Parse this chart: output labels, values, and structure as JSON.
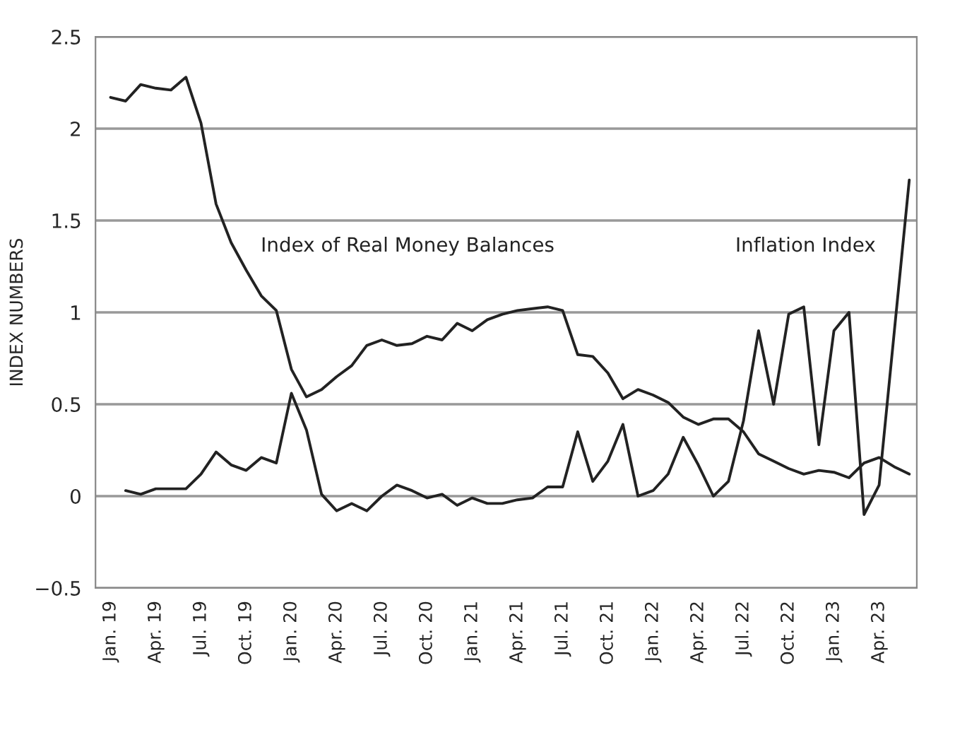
{
  "chart_data": {
    "type": "line",
    "ylabel": "INDEX NUMBERS",
    "categories": [
      "Jan. 19",
      null,
      null,
      "Apr. 19",
      null,
      null,
      "Jul. 19",
      null,
      null,
      "Oct. 19",
      null,
      null,
      "Jan. 20",
      null,
      null,
      "Apr. 20",
      null,
      null,
      "Jul. 20",
      null,
      null,
      "Oct. 20",
      null,
      null,
      "Jan. 21",
      null,
      null,
      "Apr. 21",
      null,
      null,
      "Jul. 21",
      null,
      null,
      "Oct. 21",
      null,
      null,
      "Jan. 22",
      null,
      null,
      "Apr. 22",
      null,
      null,
      "Jul. 22",
      null,
      null,
      "Oct. 22",
      null,
      null,
      "Jan. 23",
      null,
      null,
      "Apr. 23",
      null,
      null
    ],
    "series": [
      {
        "name": "Index of Real Money Balances",
        "color": "#222222",
        "values": [
          2.17,
          2.15,
          2.24,
          2.22,
          2.21,
          2.28,
          2.03,
          1.59,
          1.38,
          1.23,
          1.09,
          1.01,
          0.69,
          0.54,
          0.58,
          0.65,
          0.71,
          0.82,
          0.85,
          0.82,
          0.83,
          0.87,
          0.85,
          0.94,
          0.9,
          0.96,
          0.99,
          1.01,
          1.02,
          1.03,
          1.01,
          0.77,
          0.76,
          0.67,
          0.53,
          0.58,
          0.55,
          0.51,
          0.43,
          0.39,
          0.42,
          0.42,
          0.35,
          0.23,
          0.19,
          0.15,
          0.12,
          0.14,
          0.13,
          0.1,
          0.18,
          0.21,
          0.16,
          0.12
        ]
      },
      {
        "name": "Inflation Index",
        "color": "#222222",
        "values": [
          null,
          0.03,
          0.01,
          0.04,
          0.04,
          0.04,
          0.12,
          0.24,
          0.17,
          0.14,
          0.21,
          0.18,
          0.56,
          0.36,
          0.01,
          -0.08,
          -0.04,
          -0.08,
          0.0,
          0.06,
          0.03,
          -0.01,
          0.01,
          -0.05,
          -0.01,
          -0.04,
          -0.04,
          -0.02,
          -0.01,
          0.05,
          0.05,
          0.35,
          0.08,
          0.19,
          0.39,
          0.0,
          0.03,
          0.12,
          0.32,
          0.17,
          0.0,
          0.08,
          0.41,
          0.9,
          0.5,
          0.99,
          1.03,
          0.28,
          0.9,
          1.0,
          -0.1,
          0.06,
          0.89,
          1.72
        ]
      }
    ],
    "ylim": [
      -0.5,
      2.5
    ],
    "yticks": [
      {
        "value": -0.5,
        "label": "−0.5"
      },
      0,
      0.5,
      1,
      1.5,
      2,
      2.5
    ],
    "grid": "y",
    "legend": false,
    "marker": "none",
    "line_style": "solid"
  }
}
